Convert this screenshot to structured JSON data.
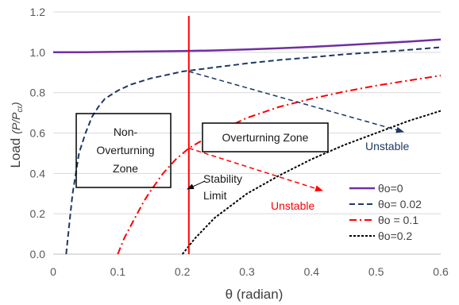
{
  "chart_data": {
    "type": "line",
    "xlabel": "θ (radian)",
    "ylabel": "Load",
    "ylabel_unit": "(P/P",
    "ylabel_sub": "cr",
    "ylabel_close": ")",
    "xlim": [
      0,
      0.6
    ],
    "ylim": [
      0,
      1.2
    ],
    "xticks": [
      "0",
      "0.1",
      "0.2",
      "0.3",
      "0.4",
      "0.5",
      "0.6"
    ],
    "yticks": [
      "0.0",
      "0.2",
      "0.4",
      "0.6",
      "0.8",
      "1.0",
      "1.2"
    ],
    "grid": "horizontal",
    "legend_position": "bottom-right",
    "series": [
      {
        "name": "θo=0",
        "color": "#7030a0",
        "dash": "solid",
        "x": [
          0,
          0.05,
          0.1,
          0.15,
          0.2,
          0.25,
          0.3,
          0.35,
          0.4,
          0.45,
          0.5,
          0.55,
          0.6
        ],
        "y": [
          1.0,
          1.0,
          1.002,
          1.004,
          1.006,
          1.009,
          1.014,
          1.02,
          1.027,
          1.035,
          1.044,
          1.053,
          1.063
        ]
      },
      {
        "name": "θo= 0.02",
        "color": "#1f3864",
        "dash": "dashed",
        "x": [
          0.02,
          0.025,
          0.03,
          0.035,
          0.04,
          0.05,
          0.06,
          0.07,
          0.08,
          0.1,
          0.12,
          0.15,
          0.2,
          0.25,
          0.3,
          0.35,
          0.4,
          0.45,
          0.5,
          0.55,
          0.6
        ],
        "y": [
          0.0,
          0.15,
          0.3,
          0.4,
          0.5,
          0.6,
          0.68,
          0.73,
          0.77,
          0.81,
          0.84,
          0.87,
          0.905,
          0.925,
          0.945,
          0.962,
          0.975,
          0.99,
          1.0,
          1.012,
          1.025
        ]
      },
      {
        "name": "θo = 0.1",
        "color": "#ff0000",
        "dash": "dashdot",
        "x": [
          0.1,
          0.11,
          0.12,
          0.13,
          0.14,
          0.15,
          0.17,
          0.19,
          0.21,
          0.25,
          0.3,
          0.35,
          0.4,
          0.45,
          0.5,
          0.55,
          0.6
        ],
        "y": [
          0.0,
          0.08,
          0.14,
          0.2,
          0.26,
          0.31,
          0.4,
          0.47,
          0.525,
          0.6,
          0.675,
          0.73,
          0.77,
          0.805,
          0.835,
          0.86,
          0.885
        ]
      },
      {
        "name": "θo=0.2",
        "color": "#000000",
        "dash": "dotted",
        "x": [
          0.2,
          0.22,
          0.25,
          0.3,
          0.35,
          0.4,
          0.45,
          0.5,
          0.55,
          0.6
        ],
        "y": [
          0.0,
          0.08,
          0.18,
          0.3,
          0.39,
          0.47,
          0.54,
          0.6,
          0.66,
          0.71
        ]
      }
    ],
    "stability_limit_x": 0.21,
    "annotations": {
      "non_overturning": [
        "Non-",
        "Overturning",
        "Zone"
      ],
      "overturning": "Overturning Zone",
      "stability": [
        "Stability",
        "Limit"
      ],
      "unstable_blue": "Unstable",
      "unstable_red": "Unstable"
    }
  },
  "colors": {
    "purple": "#7030a0",
    "navy": "#1f3864",
    "red": "#ff0000",
    "black": "#000000",
    "grid": "#d9d9d9"
  }
}
